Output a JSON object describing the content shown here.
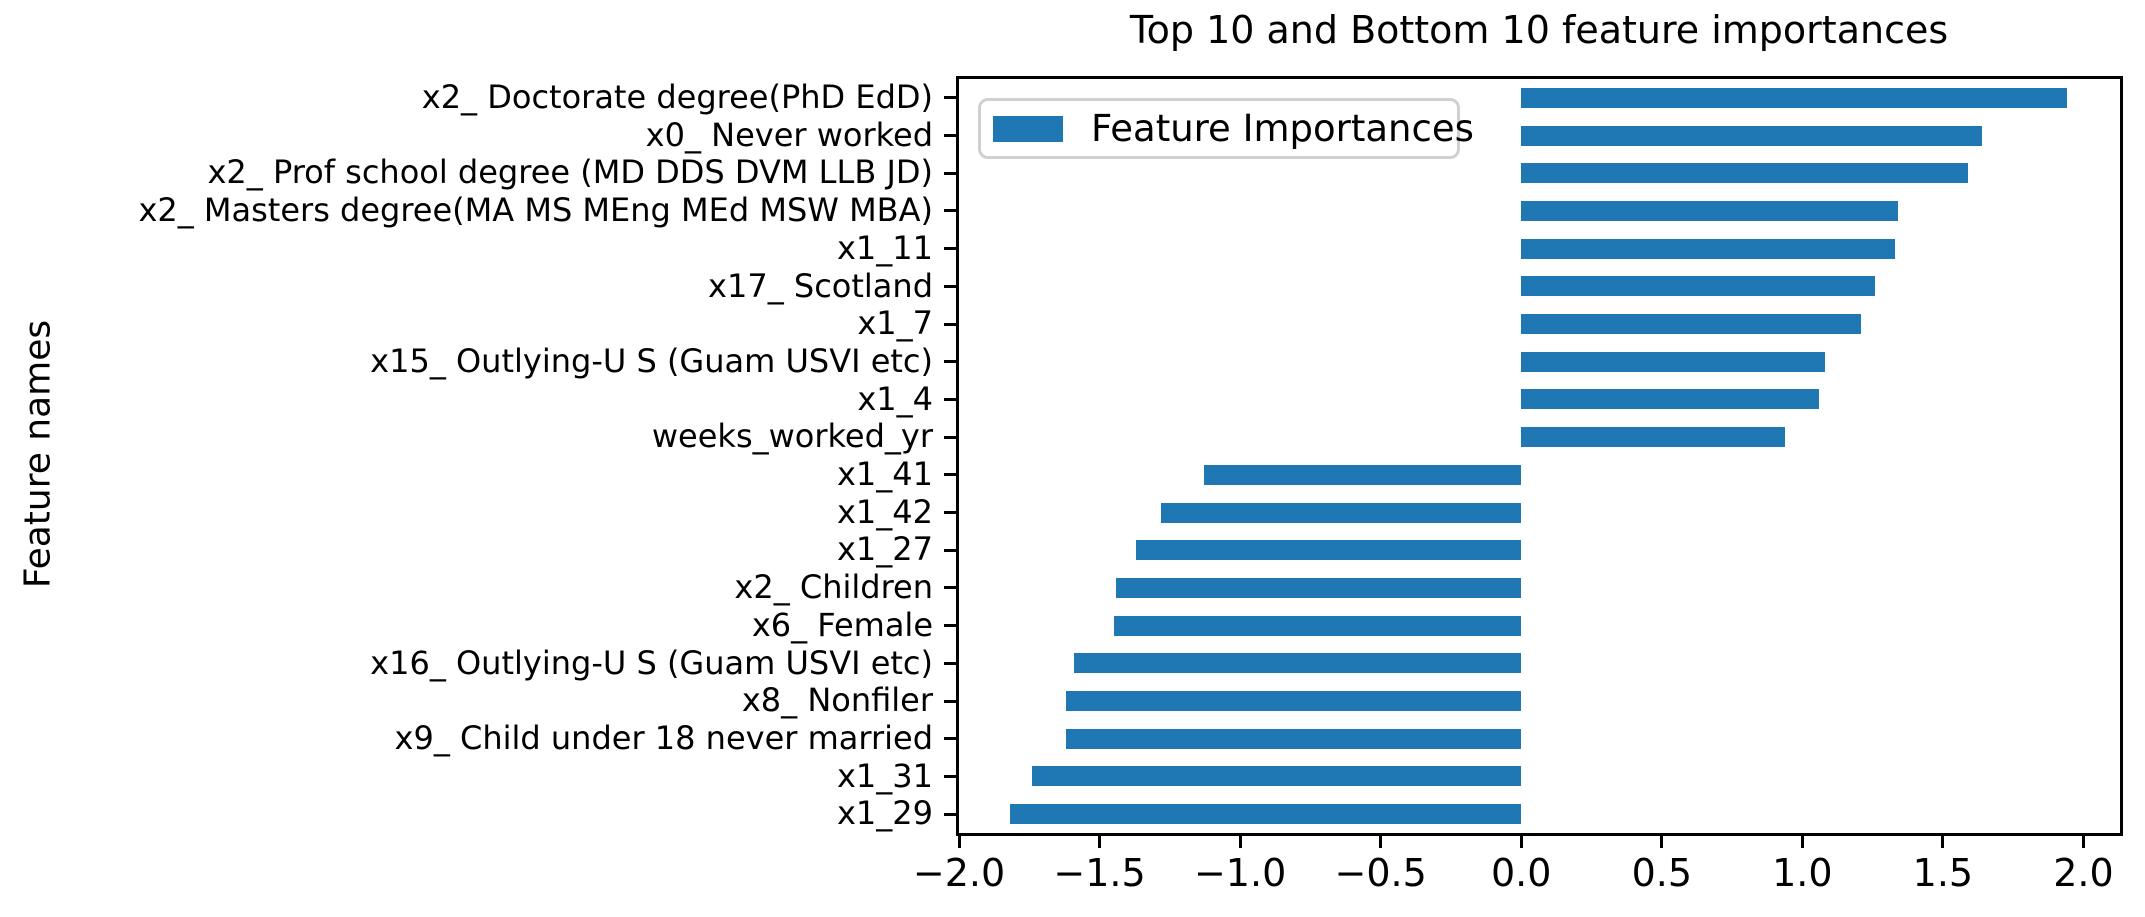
{
  "colors": {
    "bar": "#1f77b4",
    "spine": "#000000",
    "text": "#000000",
    "legend_border": "#d0d0d0",
    "background": "#ffffff"
  },
  "chart_data": {
    "type": "bar",
    "orientation": "horizontal",
    "title": "Top 10 and Bottom 10 feature importances",
    "xlabel": "",
    "ylabel": "Feature names",
    "legend": [
      "Feature Importances"
    ],
    "legend_position": "upper left",
    "grid": false,
    "xlim": [
      -2.0,
      2.13
    ],
    "xticks": [
      -2.0,
      -1.5,
      -1.0,
      -0.5,
      0.0,
      0.5,
      1.0,
      1.5,
      2.0
    ],
    "xtick_labels": [
      "−2.0",
      "−1.5",
      "−1.0",
      "−0.5",
      "0.0",
      "0.5",
      "1.0",
      "1.5",
      "2.0"
    ],
    "categories": [
      "x2_ Doctorate degree(PhD EdD)",
      "x0_ Never worked",
      "x2_ Prof school degree (MD DDS DVM LLB JD)",
      "x2_ Masters degree(MA MS MEng MEd MSW MBA)",
      "x1_11",
      "x17_ Scotland",
      "x1_7",
      "x15_ Outlying-U S (Guam USVI etc)",
      "x1_4",
      "weeks_worked_yr",
      "x1_41",
      "x1_42",
      "x1_27",
      "x2_ Children",
      "x6_ Female",
      "x16_ Outlying-U S (Guam USVI etc)",
      "x8_ Nonfiler",
      "x9_ Child under 18 never married",
      "x1_31",
      "x1_29"
    ],
    "values": [
      1.94,
      1.64,
      1.59,
      1.34,
      1.33,
      1.26,
      1.21,
      1.08,
      1.06,
      0.94,
      -1.13,
      -1.28,
      -1.37,
      -1.44,
      -1.45,
      -1.59,
      -1.62,
      -1.62,
      -1.74,
      -1.82
    ]
  }
}
